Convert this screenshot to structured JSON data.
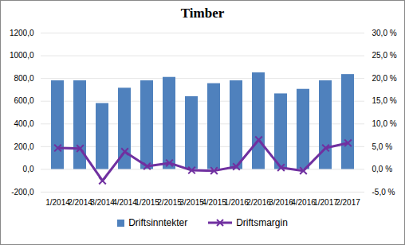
{
  "chart_data": {
    "type": "bar",
    "title": "Timber",
    "categories": [
      "1/2014",
      "2/2014",
      "3/2014",
      "4/2014",
      "1/2015",
      "2/2015",
      "3/2015",
      "4/2015",
      "1/2016",
      "2/2016",
      "3/2016",
      "4/2016",
      "1/2017",
      "2/2017"
    ],
    "series": [
      {
        "name": "Driftsinntekter",
        "type": "bar",
        "color": "#4f81bd",
        "values": [
          780,
          780,
          580,
          715,
          780,
          810,
          640,
          755,
          780,
          850,
          665,
          705,
          780,
          835
        ]
      },
      {
        "name": "Driftsmargin",
        "type": "line",
        "axis": "y2",
        "color": "#7030a0",
        "marker": "x",
        "values": [
          4.7,
          4.6,
          -2.5,
          3.9,
          0.7,
          1.4,
          -0.2,
          -0.3,
          0.6,
          6.5,
          0.4,
          -0.3,
          4.7,
          5.8
        ]
      }
    ],
    "ylim": [
      -200,
      1200
    ],
    "yticks": [
      {
        "value": -200,
        "label": "-200,0"
      },
      {
        "value": 0,
        "label": "0,0"
      },
      {
        "value": 200,
        "label": "200,0"
      },
      {
        "value": 400,
        "label": "400,0"
      },
      {
        "value": 600,
        "label": "600,0"
      },
      {
        "value": 800,
        "label": "800,0"
      },
      {
        "value": 1000,
        "label": "1000,0"
      },
      {
        "value": 1200,
        "label": "1200,0"
      }
    ],
    "y2lim": [
      -5,
      30
    ],
    "y2ticks": [
      {
        "value": -5,
        "label": "-5,0 %"
      },
      {
        "value": 0,
        "label": "0,0 %"
      },
      {
        "value": 5,
        "label": "5,0 %"
      },
      {
        "value": 10,
        "label": "10,0 %"
      },
      {
        "value": 15,
        "label": "15,0 %"
      },
      {
        "value": 20,
        "label": "20,0 %"
      },
      {
        "value": 25,
        "label": "25,0 %"
      },
      {
        "value": 30,
        "label": "30,0 %"
      }
    ],
    "grid": true,
    "legend": "bottom"
  }
}
